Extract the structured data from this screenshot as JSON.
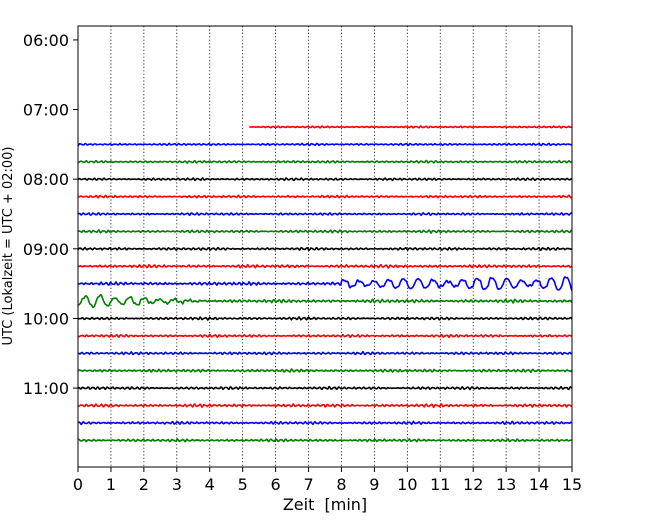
{
  "chart_data": {
    "type": "line",
    "title": "",
    "xlabel": "Zeit  [min]",
    "ylabel": "UTC (Lokalzeit = UTC + 02:00)",
    "xlim": [
      0,
      15
    ],
    "x_ticks": [
      "0",
      "1",
      "2",
      "3",
      "4",
      "5",
      "6",
      "7",
      "8",
      "9",
      "10",
      "11",
      "12",
      "13",
      "14",
      "15"
    ],
    "y_ticks": [
      "06:00",
      "07:00",
      "08:00",
      "09:00",
      "10:00",
      "11:00"
    ],
    "y_range_hours": [
      "05:48",
      "12:08"
    ],
    "x_grid": true,
    "y_grid": false,
    "trace_interval_minutes": 15,
    "color_cycle": [
      "#ff0000",
      "#0000ff",
      "#008000",
      "#000000"
    ],
    "traces": [
      {
        "start": "07:15",
        "color": "#ff0000",
        "x_start": 5.2,
        "amp": 0.25,
        "burst": []
      },
      {
        "start": "07:30",
        "color": "#0000ff",
        "x_start": 0,
        "amp": 0.3,
        "burst": []
      },
      {
        "start": "07:45",
        "color": "#008000",
        "x_start": 0,
        "amp": 0.35,
        "burst": []
      },
      {
        "start": "08:00",
        "color": "#000000",
        "x_start": 0,
        "amp": 0.35,
        "burst": []
      },
      {
        "start": "08:15",
        "color": "#ff0000",
        "x_start": 0,
        "amp": 0.35,
        "burst": []
      },
      {
        "start": "08:30",
        "color": "#0000ff",
        "x_start": 0,
        "amp": 0.35,
        "burst": []
      },
      {
        "start": "08:45",
        "color": "#008000",
        "x_start": 0,
        "amp": 0.4,
        "burst": []
      },
      {
        "start": "09:00",
        "color": "#000000",
        "x_start": 0,
        "amp": 0.4,
        "burst": []
      },
      {
        "start": "09:15",
        "color": "#ff0000",
        "x_start": 0,
        "amp": 0.45,
        "burst": []
      },
      {
        "start": "09:30",
        "color": "#0000ff",
        "x_start": 0,
        "amp": 0.5,
        "burst": [
          {
            "from": 8,
            "to": 15,
            "peak": 4.5
          }
        ]
      },
      {
        "start": "09:45",
        "color": "#008000",
        "x_start": 0,
        "amp": 0.5,
        "burst": [
          {
            "from": 0,
            "to": 4,
            "peak": 4.5
          }
        ]
      },
      {
        "start": "10:00",
        "color": "#000000",
        "x_start": 0,
        "amp": 0.4,
        "burst": []
      },
      {
        "start": "10:15",
        "color": "#ff0000",
        "x_start": 0,
        "amp": 0.4,
        "burst": []
      },
      {
        "start": "10:30",
        "color": "#0000ff",
        "x_start": 0,
        "amp": 0.4,
        "burst": []
      },
      {
        "start": "10:45",
        "color": "#008000",
        "x_start": 0,
        "amp": 0.45,
        "burst": []
      },
      {
        "start": "11:00",
        "color": "#000000",
        "x_start": 0,
        "amp": 0.4,
        "burst": []
      },
      {
        "start": "11:15",
        "color": "#ff0000",
        "x_start": 0,
        "amp": 0.45,
        "burst": []
      },
      {
        "start": "11:30",
        "color": "#0000ff",
        "x_start": 0,
        "amp": 0.4,
        "burst": []
      },
      {
        "start": "11:45",
        "color": "#008000",
        "x_start": 0,
        "amp": 0.4,
        "burst": []
      }
    ]
  }
}
